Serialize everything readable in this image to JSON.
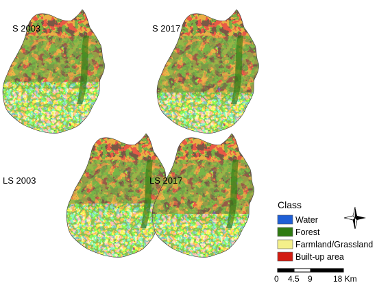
{
  "panels": [
    {
      "id": "s-2003",
      "label": "S 2003",
      "farmland_fraction": 0.38
    },
    {
      "id": "s-2017",
      "label": "S 2017",
      "farmland_fraction": 0.3
    },
    {
      "id": "ls-2003",
      "label": "LS 2003",
      "farmland_fraction": 0.4
    },
    {
      "id": "ls-2017",
      "label": "LS 2017",
      "farmland_fraction": 0.32
    }
  ],
  "legend": {
    "title": "Class",
    "items": [
      {
        "label": "Water",
        "color": "#1f5fd6"
      },
      {
        "label": "Forest",
        "color": "#2f7a12"
      },
      {
        "label": "Farmland/Grassland",
        "color": "#f4f08a"
      },
      {
        "label": "Built-up area",
        "color": "#d21c12"
      }
    ]
  },
  "scale_bar": {
    "ticks": [
      "0",
      "4.5",
      "9",
      "18 Km"
    ]
  },
  "north_arrow": {
    "icon": "compass-rose-icon"
  }
}
